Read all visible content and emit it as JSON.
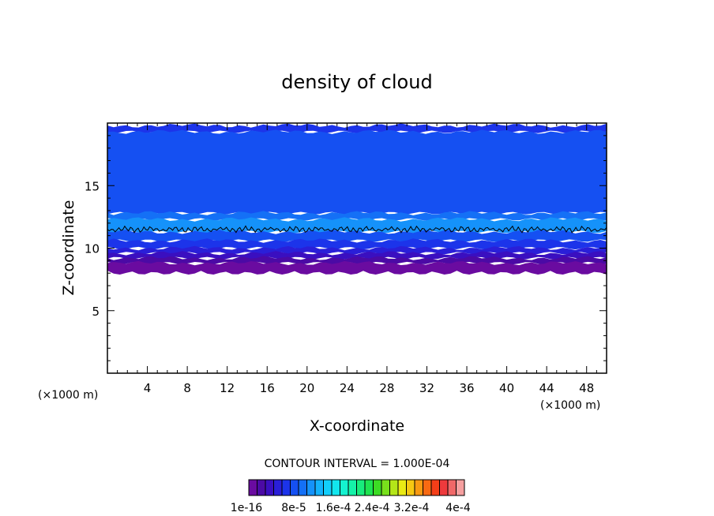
{
  "chart_data": {
    "type": "heatmap",
    "title": "density of cloud",
    "xlabel": "X-coordinate",
    "ylabel": "Z-coordinate",
    "x_unit": "(×1000 m)",
    "xlim": [
      0,
      50
    ],
    "ylim": [
      0,
      20
    ],
    "x_ticks": [
      4,
      8,
      12,
      16,
      20,
      24,
      28,
      32,
      36,
      40,
      44,
      48
    ],
    "y_ticks": [
      5,
      10,
      15
    ],
    "field_bands": [
      {
        "z_bottom": 19.3,
        "z_top": 19.8,
        "level": 4
      },
      {
        "z_bottom": 12.8,
        "z_top": 19.3,
        "level": 5
      },
      {
        "z_bottom": 12.3,
        "z_top": 12.8,
        "level": 6
      },
      {
        "z_bottom": 11.3,
        "z_top": 12.3,
        "level": 7
      },
      {
        "z_bottom": 10.6,
        "z_top": 11.3,
        "level": 5
      },
      {
        "z_bottom": 10.0,
        "z_top": 10.6,
        "level": 4
      },
      {
        "z_bottom": 9.6,
        "z_top": 10.0,
        "level": 3
      },
      {
        "z_bottom": 9.2,
        "z_top": 9.6,
        "level": 2
      },
      {
        "z_bottom": 8.8,
        "z_top": 9.2,
        "level": 1
      },
      {
        "z_bottom": 8.2,
        "z_top": 8.8,
        "level": 0
      }
    ],
    "contour_line": {
      "z": 11.5
    },
    "contour_interval": "CONTOUR INTERVAL = 1.000E-04",
    "colorbar": {
      "colors": [
        "#6a0ba0",
        "#4b0aa5",
        "#3a0fc0",
        "#2a1fd8",
        "#1c34ea",
        "#1550f2",
        "#1470f6",
        "#1592fa",
        "#13b2fc",
        "#12cefb",
        "#12e6ee",
        "#14f2d0",
        "#15f2a8",
        "#18ec7c",
        "#1ee450",
        "#3cdc24",
        "#78e01c",
        "#b4e618",
        "#eaea14",
        "#f6c812",
        "#f89a12",
        "#f86a12",
        "#f43e18",
        "#ee3a3c",
        "#f06868",
        "#f6a0a0"
      ],
      "labels": [
        "1e-16",
        "8e-5",
        "1.6e-4",
        "2.4e-4",
        "3.2e-4",
        "4e-4"
      ]
    }
  }
}
